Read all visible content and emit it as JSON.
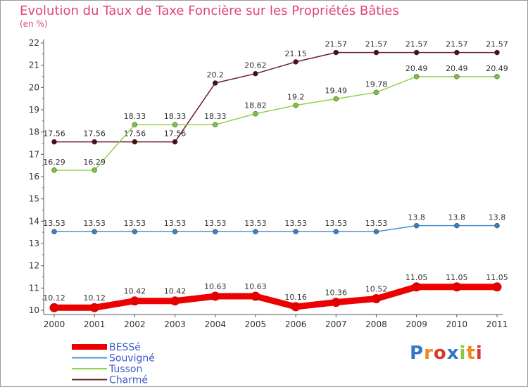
{
  "chart_data": {
    "type": "line",
    "title": "Evolution du Taux de Taxe Foncière sur les Propriétés Bâties",
    "subtitle": "(en %)",
    "categories": [
      "2000",
      "2001",
      "2002",
      "2003",
      "2004",
      "2005",
      "2006",
      "2007",
      "2008",
      "2009",
      "2010",
      "2011"
    ],
    "ylim": [
      10,
      22
    ],
    "yticks": [
      10,
      11,
      12,
      13,
      14,
      15,
      16,
      17,
      18,
      19,
      20,
      21,
      22
    ],
    "grid": false,
    "legend_position": "bottom-left",
    "series": [
      {
        "name": "Charmé",
        "color": "#6b1f2a",
        "values": [
          17.56,
          17.56,
          17.56,
          17.56,
          20.2,
          20.62,
          21.15,
          21.57,
          21.57,
          21.57,
          21.57,
          21.57
        ]
      },
      {
        "name": "Tusson",
        "color": "#8ed24a",
        "values": [
          16.29,
          16.29,
          18.33,
          18.33,
          18.33,
          18.82,
          19.2,
          19.49,
          19.78,
          20.49,
          20.49,
          20.49
        ]
      },
      {
        "name": "Souvigné",
        "color": "#4d8fcf",
        "values": [
          13.53,
          13.53,
          13.53,
          13.53,
          13.53,
          13.53,
          13.53,
          13.53,
          13.53,
          13.8,
          13.8,
          13.8
        ]
      },
      {
        "name": "BESSé",
        "color": "#ee0000",
        "values": [
          10.12,
          10.12,
          10.42,
          10.42,
          10.63,
          10.63,
          10.16,
          10.36,
          10.52,
          11.05,
          11.05,
          11.05
        ]
      }
    ],
    "data_labels": {
      "Charmé": [
        "17.56",
        "17.56",
        "17.56",
        "17.56",
        "20.2",
        "20.62",
        "21.15",
        "21.57",
        "21.57",
        "21.57",
        "21.57",
        "21.57"
      ],
      "Tusson": [
        "16.29",
        "16.29",
        "18.33",
        "18.33",
        "18.33",
        "18.82",
        "19.2",
        "19.49",
        "19.78",
        "20.49",
        "20.49",
        "20.49"
      ],
      "Souvigné": [
        "13.53",
        "13.53",
        "13.53",
        "13.53",
        "13.53",
        "13.53",
        "13.53",
        "13.53",
        "13.53",
        "13.8",
        "13.8",
        "13.8"
      ],
      "BESSé": [
        "10.12",
        "10.12",
        "10.42",
        "10.42",
        "10.63",
        "10.63",
        "10.16",
        "10.36",
        "10.52",
        "11.05",
        "11.05",
        "11.05"
      ]
    },
    "legend": [
      "BESSé",
      "Souvigné",
      "Tusson",
      "Charmé"
    ]
  },
  "logo": {
    "text": "Proxiti"
  },
  "colors": {
    "title": "#e0457a",
    "axis": "#555555",
    "legend_text": "#3a59c9"
  }
}
